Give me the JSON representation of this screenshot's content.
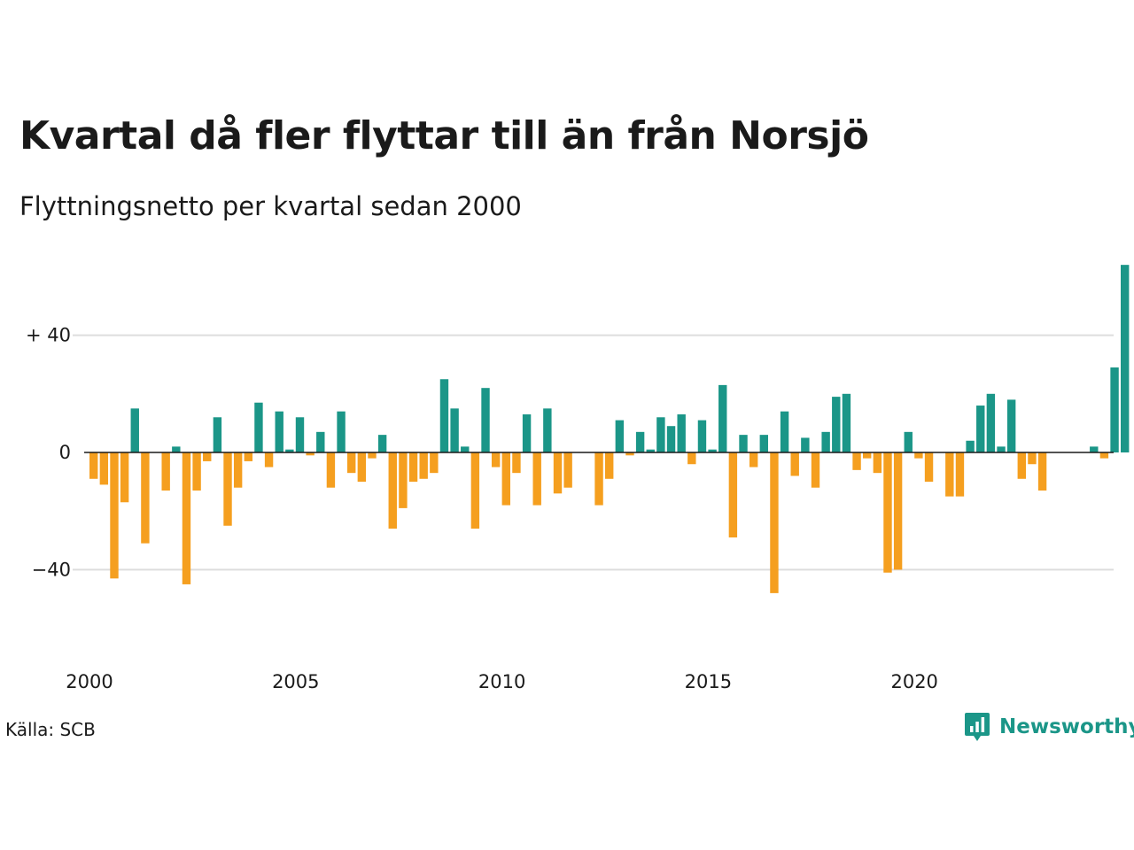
{
  "chart_data": {
    "type": "bar",
    "title": "Kvartal då fler flyttar till än från Norsjö",
    "subtitle": "Flyttningsnetto per kvartal sedan 2000",
    "x_start": 2000,
    "periods_per_year": 4,
    "values": [
      -9,
      -11,
      -43,
      -17,
      15,
      -31,
      0,
      -13,
      2,
      -45,
      -13,
      -3,
      12,
      -25,
      -12,
      -3,
      17,
      -5,
      14,
      1,
      12,
      -1,
      7,
      -12,
      14,
      -7,
      -10,
      -2,
      6,
      -26,
      -19,
      -10,
      -9,
      -7,
      25,
      15,
      2,
      -26,
      22,
      -5,
      -18,
      -7,
      13,
      -18,
      15,
      -14,
      -12,
      0,
      0,
      -18,
      -9,
      11,
      -1,
      7,
      1,
      12,
      9,
      13,
      -4,
      11,
      1,
      23,
      -29,
      6,
      -5,
      6,
      -48,
      14,
      -8,
      5,
      -12,
      7,
      19,
      20,
      -6,
      -2,
      -7,
      -41,
      -40,
      7,
      -2,
      -10,
      0,
      -15,
      -15,
      4,
      16,
      20,
      2,
      18,
      -9,
      -4,
      -13,
      0,
      0,
      0,
      0,
      2,
      -2,
      29,
      64
    ],
    "ylim": [
      -67,
      70
    ],
    "y_ticks": [
      40,
      0,
      -40
    ],
    "y_tick_labels": [
      "+ 40",
      "0",
      "−40"
    ],
    "x_tick_labels": [
      "2000",
      "2005",
      "2010",
      "2015",
      "2020"
    ],
    "colors": {
      "positive": "#1b9688",
      "negative": "#f59f1f",
      "grid": "#dddddd",
      "zero_line": "#1a1a1a"
    }
  },
  "source": "Källa: SCB",
  "brand": {
    "name": "Newsworthy",
    "color": "#1b9688",
    "icon": "bar-chart-speech-bubble-icon"
  }
}
